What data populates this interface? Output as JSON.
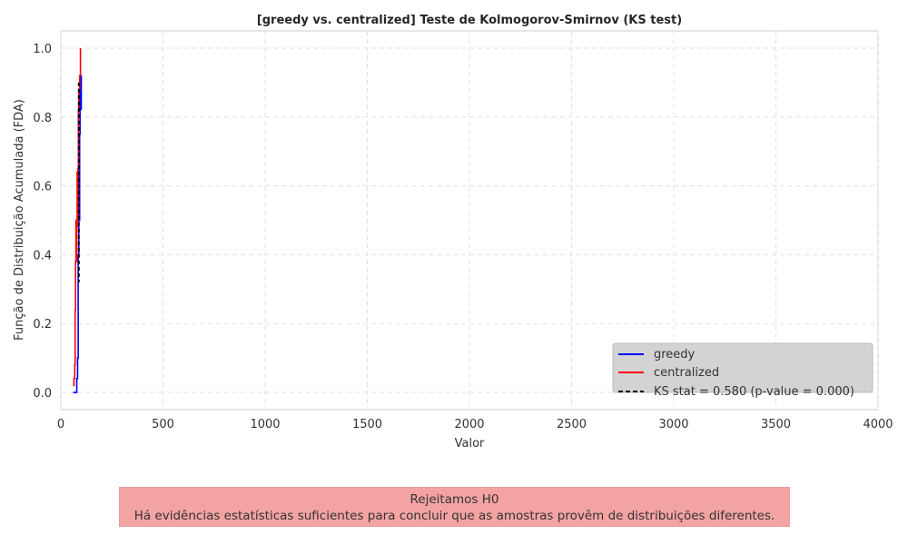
{
  "chart_data": {
    "type": "line",
    "title": "[greedy vs. centralized] Teste de Kolmogorov-Smirnov (KS test)",
    "xlabel": "Valor",
    "ylabel": "Função de Distribuição Acumulada (FDA)",
    "xlim": [
      0,
      4000
    ],
    "ylim": [
      -0.05,
      1.05
    ],
    "x_ticks": [
      0,
      500,
      1000,
      1500,
      2000,
      2500,
      3000,
      3500,
      4000
    ],
    "y_ticks": [
      0.0,
      0.2,
      0.4,
      0.6,
      0.8,
      1.0
    ],
    "x_tick_labels": [
      "0",
      "500",
      "1000",
      "1500",
      "2000",
      "2500",
      "3000",
      "3500",
      "4000"
    ],
    "y_tick_labels": [
      "0.0",
      "0.2",
      "0.4",
      "0.6",
      "0.8",
      "1.0"
    ],
    "grid": true,
    "legend_position": "bottom-right",
    "series": [
      {
        "name": "greedy",
        "color": "#0000ff",
        "step": true,
        "x": [
          60,
          78,
          82,
          85,
          88,
          90,
          92,
          94,
          96,
          100
        ],
        "y": [
          0.0,
          0.04,
          0.1,
          0.4,
          0.65,
          0.5,
          0.75,
          0.88,
          0.92,
          0.82
        ]
      },
      {
        "name": "centralized",
        "color": "#ff0000",
        "step": true,
        "x": [
          60,
          64,
          68,
          70,
          72,
          74,
          76,
          78,
          80,
          82,
          84,
          86,
          88,
          92,
          96
        ],
        "y": [
          0.02,
          0.04,
          0.08,
          0.24,
          0.38,
          0.5,
          0.38,
          0.48,
          0.64,
          0.5,
          0.65,
          0.82,
          0.88,
          0.92,
          1.0
        ]
      },
      {
        "name": "KS stat = 0.580 (p-value = 0.000)",
        "color": "#000000",
        "dashed": true,
        "x": [
          88,
          88
        ],
        "y": [
          0.9,
          0.32
        ]
      }
    ]
  },
  "conclusion": {
    "line1": "Rejeitamos H0",
    "line2": "Há evidências estatísticas suficientes para concluir que as amostras provêm de distribuições diferentes.",
    "background": "#f4a3a3"
  }
}
